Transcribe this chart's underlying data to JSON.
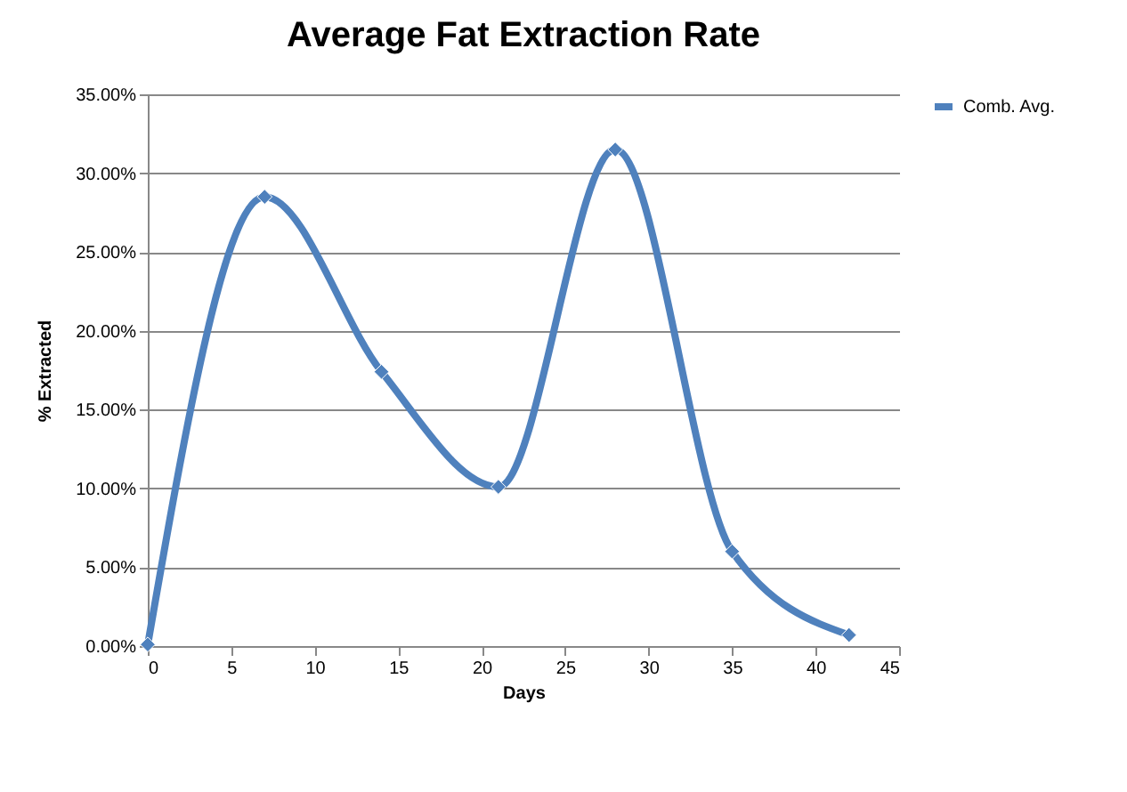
{
  "chart_data": {
    "type": "line",
    "title": "Average Fat Extraction Rate",
    "xlabel": "Days",
    "ylabel": "% Extracted",
    "x": [
      0,
      7,
      14,
      21,
      28,
      35,
      42
    ],
    "series": [
      {
        "name": "Comb. Avg.",
        "color": "#4f81bd",
        "values": [
          0.1,
          28.5,
          17.4,
          10.1,
          31.5,
          6.0,
          0.7
        ]
      }
    ],
    "xlim": [
      0,
      45
    ],
    "xticks": [
      0,
      5,
      10,
      15,
      20,
      25,
      30,
      35,
      40,
      45
    ],
    "ylim": [
      0,
      35
    ],
    "yticks": [
      {
        "value": 0,
        "label": "0.00%"
      },
      {
        "value": 5,
        "label": "5.00%"
      },
      {
        "value": 10,
        "label": "10.00%"
      },
      {
        "value": 15,
        "label": "15.00%"
      },
      {
        "value": 20,
        "label": "20.00%"
      },
      {
        "value": 25,
        "label": "25.00%"
      },
      {
        "value": 30,
        "label": "30.00%"
      },
      {
        "value": 35,
        "label": "35.00%"
      }
    ],
    "grid": "y",
    "legend": "right",
    "marker": "diamond",
    "line_style": "solid"
  }
}
